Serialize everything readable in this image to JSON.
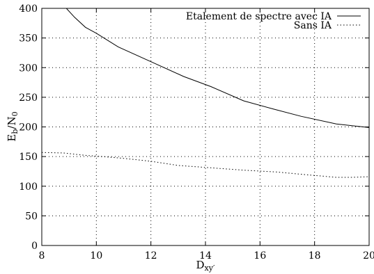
{
  "chart_data": {
    "type": "line",
    "title": "",
    "xlabel": "D_{xy'}",
    "ylabel": "E_b/N_0",
    "xlim": [
      8,
      20
    ],
    "ylim": [
      0,
      400
    ],
    "xticks": [
      8,
      10,
      12,
      14,
      16,
      18,
      20
    ],
    "yticks": [
      0,
      50,
      100,
      150,
      200,
      250,
      300,
      350,
      400
    ],
    "grid": true,
    "grid_style": "dotted",
    "legend_position": "top-right",
    "series": [
      {
        "name": "Etalement de spectre avec IA",
        "style": "solid",
        "x": [
          8.9,
          9.2,
          9.6,
          10.0,
          10.8,
          12.0,
          13.2,
          14.2,
          15.4,
          16.5,
          17.5,
          18.8,
          20.0
        ],
        "y": [
          400,
          385,
          368,
          358,
          335,
          310,
          285,
          268,
          244,
          230,
          218,
          205,
          199
        ]
      },
      {
        "name": "Sans IA",
        "style": "dotted",
        "x": [
          8.0,
          8.8,
          9.6,
          10.2,
          11.0,
          12.0,
          13.0,
          14.2,
          15.4,
          16.6,
          17.8,
          18.8,
          19.4,
          20.0
        ],
        "y": [
          157,
          156,
          152,
          150,
          147,
          142,
          135,
          131,
          127,
          124,
          119,
          115,
          115,
          116
        ]
      }
    ]
  }
}
